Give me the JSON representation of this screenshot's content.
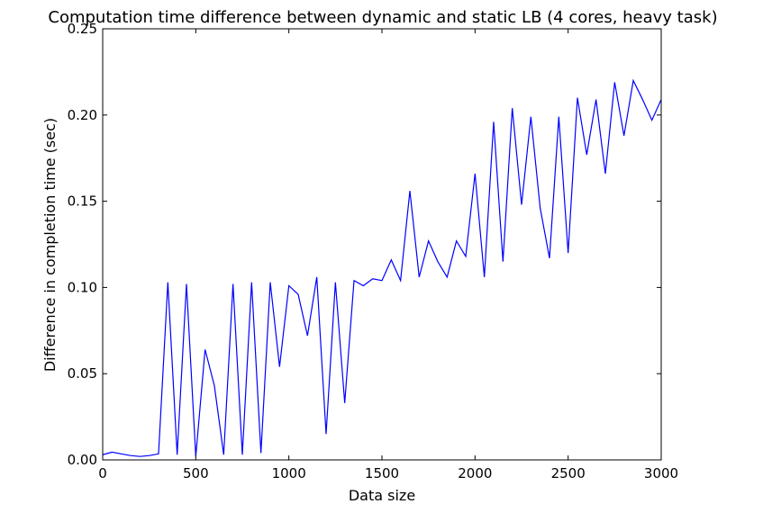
{
  "chart_data": {
    "type": "line",
    "title": "Computation time difference between dynamic and static LB (4 cores, heavy task)",
    "xlabel": "Data size",
    "ylabel": "Difference in completion time (sec)",
    "xlim": [
      0,
      3000
    ],
    "ylim": [
      0,
      0.25
    ],
    "xticks": [
      0,
      500,
      1000,
      1500,
      2000,
      2500,
      3000
    ],
    "xtick_labels": [
      "0",
      "500",
      "1000",
      "1500",
      "2000",
      "2500",
      "3000"
    ],
    "yticks": [
      0.0,
      0.05,
      0.1,
      0.15,
      0.2,
      0.25
    ],
    "ytick_labels": [
      "0.00",
      "0.05",
      "0.10",
      "0.15",
      "0.20",
      "0.25"
    ],
    "grid": false,
    "line_color": "#0000ff",
    "series": [
      {
        "x": [
          0,
          50,
          100,
          150,
          200,
          250,
          300,
          350,
          400,
          450,
          500,
          550,
          600,
          650,
          700,
          750,
          800,
          850,
          900,
          950,
          1000,
          1050,
          1100,
          1150,
          1200,
          1250,
          1300,
          1350,
          1400,
          1450,
          1500,
          1550,
          1600,
          1650,
          1700,
          1750,
          1800,
          1850,
          1900,
          1950,
          2000,
          2050,
          2100,
          2150,
          2200,
          2250,
          2300,
          2350,
          2400,
          2450,
          2500,
          2550,
          2600,
          2650,
          2700,
          2750,
          2800,
          2850,
          2900,
          2950,
          3000
        ],
        "values": [
          0.003,
          0.0045,
          0.0035,
          0.0025,
          0.002,
          0.0025,
          0.0035,
          0.103,
          0.003,
          0.102,
          0.002,
          0.064,
          0.043,
          0.003,
          0.102,
          0.003,
          0.103,
          0.004,
          0.103,
          0.054,
          0.101,
          0.096,
          0.072,
          0.106,
          0.015,
          0.103,
          0.033,
          0.104,
          0.101,
          0.105,
          0.104,
          0.116,
          0.104,
          0.156,
          0.106,
          0.127,
          0.115,
          0.106,
          0.127,
          0.118,
          0.166,
          0.106,
          0.196,
          0.115,
          0.204,
          0.148,
          0.199,
          0.146,
          0.117,
          0.199,
          0.12,
          0.21,
          0.177,
          0.209,
          0.166,
          0.219,
          0.188,
          0.22,
          0.209,
          0.197,
          0.209
        ]
      }
    ]
  }
}
